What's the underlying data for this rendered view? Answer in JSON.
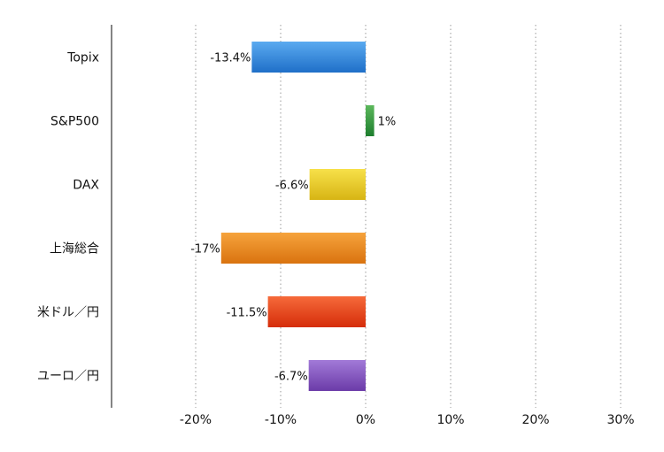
{
  "chart_data": {
    "type": "bar",
    "orientation": "horizontal",
    "categories": [
      "Topix",
      "S&P500",
      "DAX",
      "上海総合",
      "米ドル／円",
      "ユーロ／円"
    ],
    "values": [
      -13.4,
      1,
      -6.6,
      -17,
      -11.5,
      -6.7
    ],
    "data_labels": [
      "-13.4%",
      "1%",
      "-6.6%",
      "-17%",
      "-11.5%",
      "-6.7%"
    ],
    "colors": [
      [
        "#5aaaf0",
        "#1f6fc8"
      ],
      [
        "#5cb85c",
        "#1e7e2e"
      ],
      [
        "#f7e14a",
        "#d7b414"
      ],
      [
        "#f6a33c",
        "#d9730f"
      ],
      [
        "#f66a3a",
        "#d52d0a"
      ],
      [
        "#a27ad8",
        "#6b3ba8"
      ]
    ],
    "xlim": [
      -30,
      30
    ],
    "xticks": [
      -20,
      -10,
      0,
      10,
      20,
      30
    ],
    "xtick_labels": [
      "-20%",
      "-10%",
      "0%",
      "10%",
      "20%",
      "30%"
    ],
    "grid": "vertical-dotted",
    "title": "",
    "xlabel": "",
    "ylabel": ""
  }
}
